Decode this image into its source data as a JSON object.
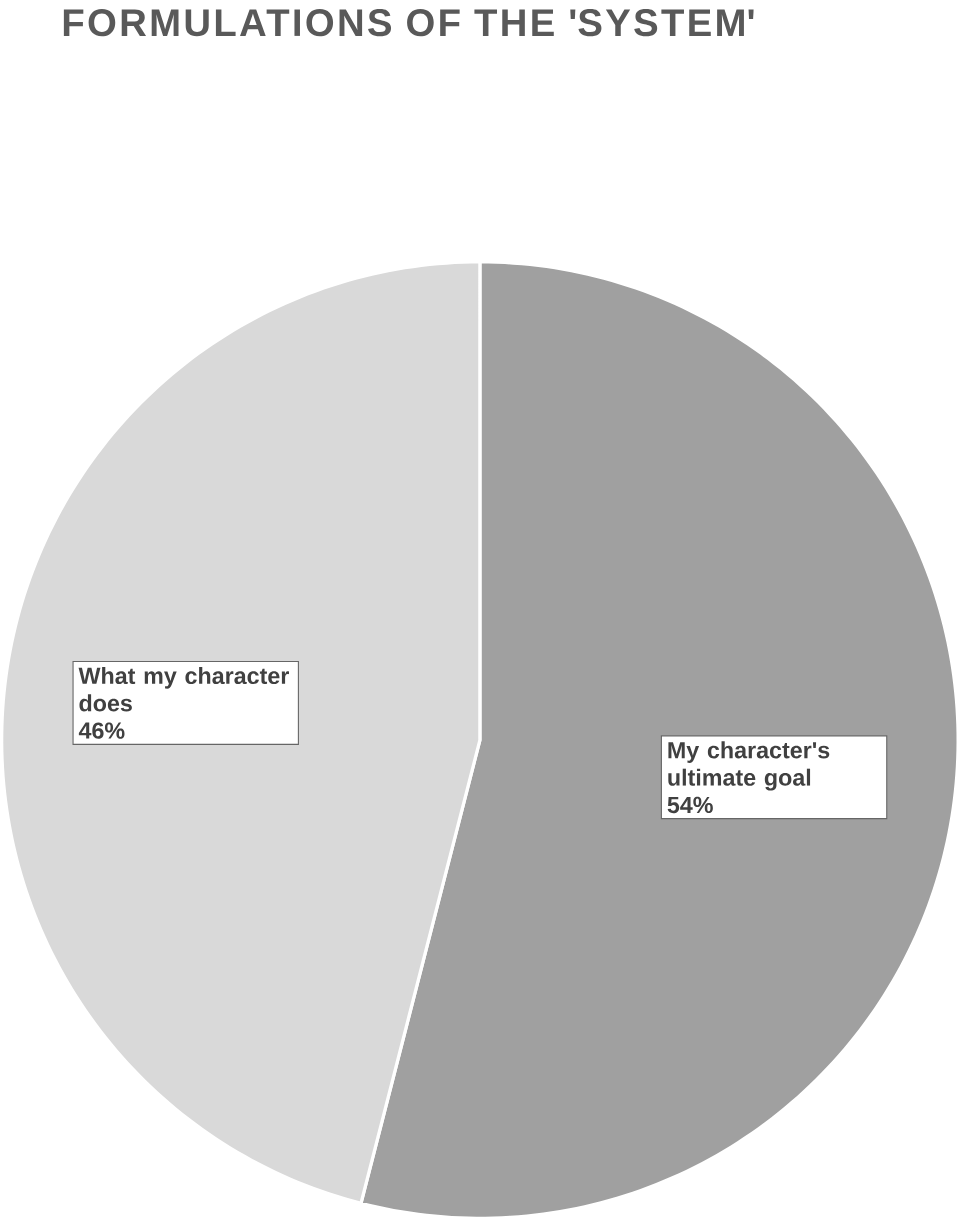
{
  "chart_data": {
    "type": "pie",
    "title": "FORMULATIONS OF THE 'SYSTEM'",
    "categories": [
      "My character's ultimate goal",
      "What my character does"
    ],
    "values": [
      54,
      46
    ],
    "value_labels": [
      "54%",
      "46%"
    ],
    "colors": [
      "#a0a0a0",
      "#d9d9d9"
    ]
  }
}
